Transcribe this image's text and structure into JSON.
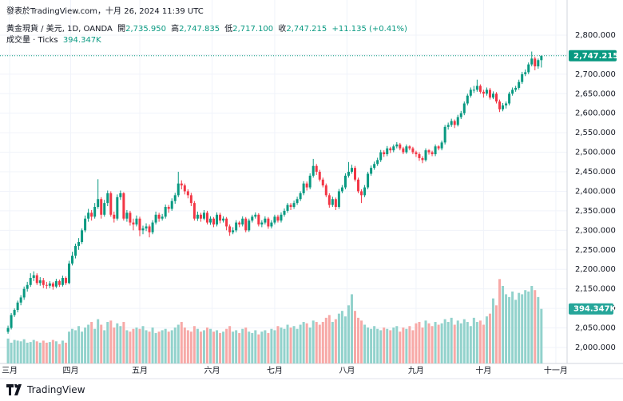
{
  "header": {
    "published": "發表於TradingView.com，十月 26, 2024 11:39 UTC"
  },
  "footer": {
    "brand": "TradingView"
  },
  "chart_data": {
    "type": "candlestick",
    "legend": {
      "symbol": "黃金現貨 / 美元, 1D, OANDA",
      "open_name": "開",
      "open": "2,735.950",
      "high_name": "高",
      "high": "2,747.835",
      "low_name": "低",
      "low": "2,717.100",
      "close_name": "收",
      "close": "2,747.215",
      "change": "+11.135 (+0.41%)",
      "volume_name": "成交量 · Ticks"
    },
    "volume_label": "394.347K",
    "up_color": "#089981",
    "down_color": "#f23645",
    "volume_up_color": "#92d2cc",
    "volume_down_color": "#f7a9a7",
    "grid": true,
    "xlim": [
      -2.5,
      174
    ],
    "ylim": [
      1959,
      2845
    ],
    "vlim": [
      0,
      2500000
    ],
    "xticks": [
      {
        "value": 0.5,
        "label": "三月"
      },
      {
        "value": 19.5,
        "label": "四月"
      },
      {
        "value": 41,
        "label": "五月"
      },
      {
        "value": 63.5,
        "label": "六月"
      },
      {
        "value": 83,
        "label": "七月"
      },
      {
        "value": 105.5,
        "label": "八月"
      },
      {
        "value": 127,
        "label": "九月"
      },
      {
        "value": 148,
        "label": "十月"
      },
      {
        "value": 170.5,
        "label": "十一月"
      }
    ],
    "yticks": [
      {
        "value": 2000,
        "label": "2,000.000"
      },
      {
        "value": 2050,
        "label": "2,050.000"
      },
      {
        "value": 2100,
        "label": "2,100.000"
      },
      {
        "value": 2150,
        "label": "2,150.000"
      },
      {
        "value": 2200,
        "label": "2,200.000"
      },
      {
        "value": 2250,
        "label": "2,250.000"
      },
      {
        "value": 2300,
        "label": "2,300.000"
      },
      {
        "value": 2350,
        "label": "2,350.000"
      },
      {
        "value": 2400,
        "label": "2,400.000"
      },
      {
        "value": 2450,
        "label": "2,450.000"
      },
      {
        "value": 2500,
        "label": "2,500.000"
      },
      {
        "value": 2550,
        "label": "2,550.000"
      },
      {
        "value": 2600,
        "label": "2,600.000"
      },
      {
        "value": 2650,
        "label": "2,650.000"
      },
      {
        "value": 2700,
        "label": "2,700.000"
      },
      {
        "value": 2750,
        "label": "2,750.000"
      },
      {
        "value": 2800,
        "label": "2,800.000"
      }
    ],
    "candles": [
      [
        2040,
        2056,
        2035,
        2050
      ],
      [
        2050,
        2088,
        2046,
        2083
      ],
      [
        2083,
        2100,
        2078,
        2096
      ],
      [
        2096,
        2120,
        2090,
        2115
      ],
      [
        2115,
        2134,
        2108,
        2128
      ],
      [
        2128,
        2156,
        2122,
        2150
      ],
      [
        2150,
        2168,
        2143,
        2160
      ],
      [
        2160,
        2190,
        2155,
        2178
      ],
      [
        2178,
        2195,
        2170,
        2185
      ],
      [
        2185,
        2190,
        2160,
        2165
      ],
      [
        2165,
        2180,
        2158,
        2172
      ],
      [
        2172,
        2178,
        2152,
        2160
      ],
      [
        2160,
        2168,
        2150,
        2158
      ],
      [
        2158,
        2170,
        2152,
        2164
      ],
      [
        2164,
        2168,
        2148,
        2156
      ],
      [
        2156,
        2176,
        2152,
        2170
      ],
      [
        2170,
        2174,
        2155,
        2160
      ],
      [
        2160,
        2184,
        2156,
        2178
      ],
      [
        2178,
        2182,
        2160,
        2165
      ],
      [
        2165,
        2222,
        2162,
        2215
      ],
      [
        2215,
        2245,
        2210,
        2235
      ],
      [
        2235,
        2266,
        2228,
        2260
      ],
      [
        2260,
        2280,
        2250,
        2270
      ],
      [
        2270,
        2305,
        2265,
        2300
      ],
      [
        2300,
        2338,
        2295,
        2330
      ],
      [
        2330,
        2355,
        2322,
        2345
      ],
      [
        2345,
        2352,
        2325,
        2335
      ],
      [
        2335,
        2370,
        2330,
        2360
      ],
      [
        2360,
        2431,
        2355,
        2380
      ],
      [
        2380,
        2385,
        2330,
        2340
      ],
      [
        2340,
        2378,
        2335,
        2370
      ],
      [
        2370,
        2402,
        2362,
        2395
      ],
      [
        2395,
        2400,
        2335,
        2340
      ],
      [
        2340,
        2348,
        2320,
        2330
      ],
      [
        2330,
        2392,
        2325,
        2385
      ],
      [
        2385,
        2402,
        2378,
        2395
      ],
      [
        2395,
        2398,
        2325,
        2330
      ],
      [
        2330,
        2352,
        2322,
        2345
      ],
      [
        2345,
        2350,
        2312,
        2320
      ],
      [
        2320,
        2330,
        2300,
        2315
      ],
      [
        2315,
        2338,
        2310,
        2330
      ],
      [
        2330,
        2335,
        2285,
        2300
      ],
      [
        2300,
        2312,
        2290,
        2305
      ],
      [
        2305,
        2318,
        2298,
        2310
      ],
      [
        2310,
        2315,
        2282,
        2295
      ],
      [
        2295,
        2326,
        2290,
        2320
      ],
      [
        2320,
        2348,
        2315,
        2340
      ],
      [
        2340,
        2345,
        2322,
        2330
      ],
      [
        2330,
        2342,
        2325,
        2335
      ],
      [
        2335,
        2366,
        2330,
        2360
      ],
      [
        2360,
        2365,
        2345,
        2355
      ],
      [
        2355,
        2382,
        2350,
        2375
      ],
      [
        2375,
        2396,
        2368,
        2390
      ],
      [
        2390,
        2450,
        2385,
        2420
      ],
      [
        2420,
        2428,
        2405,
        2415
      ],
      [
        2415,
        2420,
        2392,
        2400
      ],
      [
        2400,
        2405,
        2382,
        2390
      ],
      [
        2390,
        2396,
        2362,
        2370
      ],
      [
        2370,
        2375,
        2325,
        2330
      ],
      [
        2330,
        2348,
        2324,
        2340
      ],
      [
        2340,
        2345,
        2322,
        2330
      ],
      [
        2330,
        2352,
        2326,
        2345
      ],
      [
        2345,
        2350,
        2315,
        2320
      ],
      [
        2320,
        2336,
        2314,
        2330
      ],
      [
        2330,
        2334,
        2308,
        2315
      ],
      [
        2315,
        2346,
        2310,
        2340
      ],
      [
        2340,
        2345,
        2318,
        2325
      ],
      [
        2325,
        2336,
        2320,
        2330
      ],
      [
        2330,
        2334,
        2300,
        2310
      ],
      [
        2310,
        2315,
        2286,
        2295
      ],
      [
        2295,
        2308,
        2290,
        2300
      ],
      [
        2300,
        2326,
        2295,
        2320
      ],
      [
        2320,
        2324,
        2308,
        2315
      ],
      [
        2315,
        2336,
        2310,
        2330
      ],
      [
        2330,
        2334,
        2295,
        2300
      ],
      [
        2300,
        2330,
        2296,
        2325
      ],
      [
        2325,
        2340,
        2320,
        2335
      ],
      [
        2335,
        2346,
        2330,
        2340
      ],
      [
        2340,
        2344,
        2310,
        2315
      ],
      [
        2315,
        2326,
        2308,
        2320
      ],
      [
        2320,
        2336,
        2315,
        2330
      ],
      [
        2330,
        2334,
        2304,
        2310
      ],
      [
        2310,
        2326,
        2305,
        2320
      ],
      [
        2320,
        2340,
        2315,
        2335
      ],
      [
        2335,
        2340,
        2320,
        2325
      ],
      [
        2325,
        2346,
        2320,
        2340
      ],
      [
        2340,
        2356,
        2335,
        2350
      ],
      [
        2350,
        2370,
        2345,
        2365
      ],
      [
        2365,
        2370,
        2352,
        2360
      ],
      [
        2360,
        2376,
        2355,
        2370
      ],
      [
        2370,
        2386,
        2365,
        2380
      ],
      [
        2380,
        2400,
        2375,
        2395
      ],
      [
        2395,
        2426,
        2390,
        2420
      ],
      [
        2420,
        2425,
        2402,
        2410
      ],
      [
        2410,
        2446,
        2405,
        2440
      ],
      [
        2440,
        2483,
        2435,
        2465
      ],
      [
        2465,
        2470,
        2442,
        2450
      ],
      [
        2450,
        2455,
        2425,
        2430
      ],
      [
        2430,
        2435,
        2410,
        2415
      ],
      [
        2415,
        2420,
        2385,
        2390
      ],
      [
        2390,
        2395,
        2358,
        2365
      ],
      [
        2365,
        2386,
        2360,
        2380
      ],
      [
        2380,
        2384,
        2352,
        2360
      ],
      [
        2360,
        2406,
        2355,
        2400
      ],
      [
        2400,
        2416,
        2395,
        2410
      ],
      [
        2410,
        2446,
        2405,
        2440
      ],
      [
        2440,
        2475,
        2435,
        2450
      ],
      [
        2450,
        2468,
        2445,
        2460
      ],
      [
        2460,
        2465,
        2425,
        2430
      ],
      [
        2430,
        2435,
        2395,
        2400
      ],
      [
        2400,
        2405,
        2370,
        2390
      ],
      [
        2390,
        2416,
        2385,
        2410
      ],
      [
        2410,
        2450,
        2405,
        2445
      ],
      [
        2445,
        2466,
        2440,
        2460
      ],
      [
        2460,
        2476,
        2455,
        2470
      ],
      [
        2470,
        2486,
        2465,
        2480
      ],
      [
        2480,
        2506,
        2475,
        2500
      ],
      [
        2500,
        2505,
        2488,
        2495
      ],
      [
        2495,
        2516,
        2490,
        2510
      ],
      [
        2510,
        2514,
        2498,
        2505
      ],
      [
        2505,
        2520,
        2500,
        2515
      ],
      [
        2515,
        2526,
        2510,
        2520
      ],
      [
        2520,
        2524,
        2505,
        2510
      ],
      [
        2510,
        2514,
        2495,
        2500
      ],
      [
        2500,
        2520,
        2496,
        2515
      ],
      [
        2515,
        2518,
        2505,
        2510
      ],
      [
        2510,
        2514,
        2495,
        2500
      ],
      [
        2500,
        2504,
        2488,
        2495
      ],
      [
        2495,
        2500,
        2478,
        2485
      ],
      [
        2485,
        2490,
        2472,
        2480
      ],
      [
        2480,
        2510,
        2476,
        2505
      ],
      [
        2505,
        2508,
        2494,
        2500
      ],
      [
        2500,
        2504,
        2490,
        2495
      ],
      [
        2495,
        2520,
        2490,
        2515
      ],
      [
        2515,
        2518,
        2505,
        2510
      ],
      [
        2510,
        2530,
        2505,
        2525
      ],
      [
        2525,
        2570,
        2520,
        2565
      ],
      [
        2565,
        2576,
        2558,
        2570
      ],
      [
        2570,
        2586,
        2565,
        2580
      ],
      [
        2580,
        2584,
        2562,
        2570
      ],
      [
        2570,
        2596,
        2566,
        2590
      ],
      [
        2590,
        2606,
        2585,
        2600
      ],
      [
        2600,
        2630,
        2595,
        2625
      ],
      [
        2625,
        2650,
        2620,
        2645
      ],
      [
        2645,
        2666,
        2640,
        2660
      ],
      [
        2660,
        2670,
        2652,
        2660
      ],
      [
        2660,
        2686,
        2655,
        2670
      ],
      [
        2670,
        2674,
        2650,
        2655
      ],
      [
        2655,
        2660,
        2640,
        2650
      ],
      [
        2650,
        2666,
        2645,
        2660
      ],
      [
        2660,
        2665,
        2635,
        2640
      ],
      [
        2640,
        2656,
        2636,
        2650
      ],
      [
        2650,
        2654,
        2625,
        2630
      ],
      [
        2630,
        2635,
        2603,
        2610
      ],
      [
        2610,
        2626,
        2605,
        2620
      ],
      [
        2620,
        2630,
        2612,
        2625
      ],
      [
        2625,
        2655,
        2620,
        2650
      ],
      [
        2650,
        2666,
        2645,
        2660
      ],
      [
        2660,
        2670,
        2655,
        2665
      ],
      [
        2665,
        2686,
        2660,
        2680
      ],
      [
        2680,
        2706,
        2675,
        2700
      ],
      [
        2700,
        2712,
        2695,
        2705
      ],
      [
        2705,
        2730,
        2700,
        2725
      ],
      [
        2725,
        2758,
        2720,
        2740
      ],
      [
        2740,
        2745,
        2710,
        2720
      ],
      [
        2720,
        2740,
        2714,
        2736
      ],
      [
        2735.95,
        2747.835,
        2717.1,
        2747.215
      ]
    ],
    "volume": [
      180000,
      150000,
      170000,
      165000,
      160000,
      175000,
      150000,
      155000,
      170000,
      160000,
      150000,
      165000,
      150000,
      155000,
      170000,
      160000,
      140000,
      165000,
      150000,
      230000,
      250000,
      240000,
      270000,
      230000,
      260000,
      280000,
      300000,
      250000,
      320000,
      280000,
      240000,
      300000,
      310000,
      260000,
      290000,
      270000,
      300000,
      240000,
      230000,
      250000,
      260000,
      250000,
      270000,
      240000,
      230000,
      260000,
      220000,
      230000,
      240000,
      250000,
      230000,
      240000,
      260000,
      280000,
      300000,
      260000,
      240000,
      230000,
      270000,
      250000,
      230000,
      240000,
      260000,
      250000,
      230000,
      240000,
      220000,
      230000,
      250000,
      270000,
      230000,
      240000,
      220000,
      250000,
      260000,
      230000,
      220000,
      240000,
      210000,
      230000,
      240000,
      220000,
      250000,
      240000,
      270000,
      260000,
      250000,
      280000,
      260000,
      270000,
      250000,
      280000,
      300000,
      290000,
      260000,
      310000,
      300000,
      280000,
      300000,
      330000,
      350000,
      300000,
      320000,
      360000,
      380000,
      340000,
      420000,
      500000,
      380000,
      330000,
      310000,
      280000,
      260000,
      250000,
      270000,
      250000,
      240000,
      260000,
      250000,
      240000,
      260000,
      270000,
      230000,
      260000,
      250000,
      270000,
      240000,
      290000,
      300000,
      260000,
      310000,
      290000,
      270000,
      300000,
      280000,
      290000,
      320000,
      300000,
      330000,
      280000,
      310000,
      290000,
      320000,
      300000,
      270000,
      330000,
      300000,
      310000,
      280000,
      340000,
      360000,
      470000,
      420000,
      610000,
      560000,
      500000,
      480000,
      520000,
      460000,
      510000,
      500000,
      530000,
      520000,
      560000,
      530000,
      480000,
      394347
    ]
  }
}
